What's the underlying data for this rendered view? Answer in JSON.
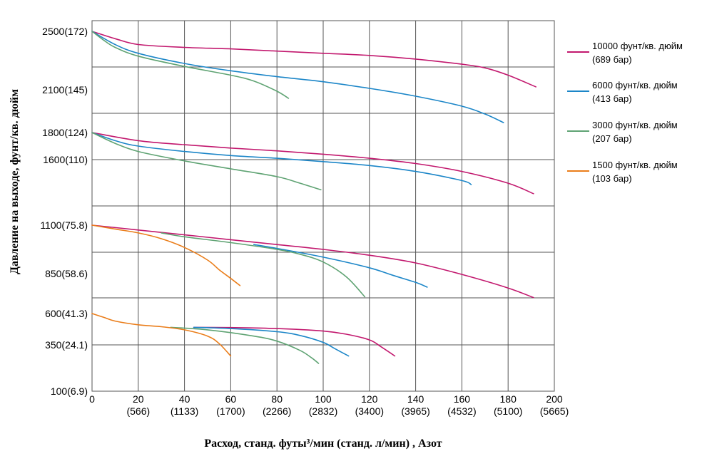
{
  "chart_data": {
    "type": "line",
    "xlabel": "Расход, станд. футы³/мин (станд. л/мин) , Азот",
    "ylabel": "Давление на выходе, фунт/кв. дюйм",
    "xlim": [
      0,
      200
    ],
    "x_ticks": [
      {
        "value": 0,
        "label": "0",
        "sub": ""
      },
      {
        "value": 20,
        "label": "20",
        "sub": "(566)"
      },
      {
        "value": 40,
        "label": "40",
        "sub": "(1133)"
      },
      {
        "value": 60,
        "label": "60",
        "sub": "(1700)"
      },
      {
        "value": 80,
        "label": "80",
        "sub": "(2266)"
      },
      {
        "value": 100,
        "label": "100",
        "sub": "(2832)"
      },
      {
        "value": 120,
        "label": "120",
        "sub": "(3400)"
      },
      {
        "value": 140,
        "label": "140",
        "sub": "(3965)"
      },
      {
        "value": 160,
        "label": "160",
        "sub": "(4532)"
      },
      {
        "value": 180,
        "label": "180",
        "sub": "(5100)"
      },
      {
        "value": 200,
        "label": "200",
        "sub": "(5665)"
      }
    ],
    "y_ticks": [
      "2500(172)",
      "2100(145)",
      "1800(124)",
      "1600(110)",
      "1100(75.8)",
      "850(58.6)",
      "600(41.3)",
      "350(24.1)",
      "100(6.9)"
    ],
    "legend": [
      {
        "key": "s10000",
        "line1": "10000 фунт/кв. дюйм",
        "line2": "(689 бар)",
        "color": "#c2186e"
      },
      {
        "key": "s6000",
        "line1": "6000 фунт/кв. дюйм",
        "line2": "(413 бар)",
        "color": "#1c86c8"
      },
      {
        "key": "s3000",
        "line1": "3000 фунт/кв. дюйм",
        "line2": "(207 бар)",
        "color": "#5fa373"
      },
      {
        "key": "s1500",
        "line1": "1500 фунт/кв. дюйм",
        "line2": "(103 бар)",
        "color": "#ea7d1a"
      }
    ],
    "series": [
      {
        "series": "s10000",
        "setting": "2500(172)",
        "x": [
          0,
          10,
          20,
          40,
          60,
          80,
          100,
          120,
          140,
          160,
          170,
          180,
          192
        ],
        "y": [
          2500,
          2450,
          2410,
          2390,
          2380,
          2365,
          2350,
          2335,
          2310,
          2275,
          2250,
          2200,
          2120
        ]
      },
      {
        "series": "s6000",
        "setting": "2500(172)",
        "x": [
          0,
          10,
          20,
          40,
          60,
          80,
          100,
          120,
          140,
          160,
          170,
          178
        ],
        "y": [
          2500,
          2410,
          2350,
          2280,
          2230,
          2190,
          2155,
          2110,
          2055,
          1985,
          1930,
          1870
        ]
      },
      {
        "series": "s3000",
        "setting": "2500(172)",
        "x": [
          0,
          5,
          10,
          20,
          40,
          60,
          70,
          80,
          85
        ],
        "y": [
          2500,
          2440,
          2390,
          2330,
          2260,
          2200,
          2160,
          2090,
          2040
        ]
      },
      {
        "series": "s10000",
        "setting": "1800(124)",
        "x": [
          0,
          20,
          40,
          60,
          80,
          100,
          120,
          140,
          160,
          180,
          191
        ],
        "y": [
          1800,
          1740,
          1710,
          1685,
          1665,
          1640,
          1610,
          1570,
          1510,
          1420,
          1340
        ]
      },
      {
        "series": "s6000",
        "setting": "1800(124)",
        "x": [
          0,
          10,
          20,
          40,
          60,
          80,
          100,
          120,
          140,
          160,
          164
        ],
        "y": [
          1800,
          1740,
          1700,
          1660,
          1630,
          1610,
          1585,
          1555,
          1510,
          1440,
          1410
        ]
      },
      {
        "series": "s3000",
        "setting": "1800(124)",
        "x": [
          0,
          10,
          20,
          40,
          60,
          80,
          90,
          99
        ],
        "y": [
          1800,
          1720,
          1660,
          1590,
          1530,
          1470,
          1420,
          1370
        ]
      },
      {
        "series": "s10000",
        "setting": "1100(75.8)",
        "x": [
          0,
          20,
          40,
          60,
          80,
          100,
          120,
          140,
          160,
          180,
          191
        ],
        "y": [
          1100,
          1075,
          1050,
          1025,
          1000,
          975,
          945,
          905,
          845,
          760,
          700
        ]
      },
      {
        "series": "s6000",
        "setting": "1100(75.8)",
        "x": [
          70,
          80,
          100,
          120,
          130,
          140,
          145
        ],
        "y": [
          1000,
          980,
          935,
          880,
          840,
          795,
          765
        ]
      },
      {
        "series": "s3000",
        "setting": "1100(75.8)",
        "x": [
          30,
          40,
          60,
          80,
          90,
          100,
          110,
          118
        ],
        "y": [
          1060,
          1040,
          1010,
          975,
          950,
          910,
          830,
          705
        ]
      },
      {
        "series": "s1500",
        "setting": "1100(75.8)",
        "x": [
          0,
          10,
          20,
          30,
          40,
          50,
          55,
          60,
          64
        ],
        "y": [
          1100,
          1080,
          1060,
          1030,
          985,
          920,
          870,
          820,
          775
        ]
      },
      {
        "series": "s10000",
        "setting": "600(41.3)",
        "x": [
          44,
          60,
          80,
          100,
          110,
          120,
          125,
          131
        ],
        "y": [
          490,
          488,
          480,
          460,
          435,
          390,
          340,
          290
        ]
      },
      {
        "series": "s6000",
        "setting": "600(41.3)",
        "x": [
          44,
          60,
          80,
          90,
          100,
          105,
          111
        ],
        "y": [
          490,
          480,
          455,
          425,
          370,
          330,
          290
        ]
      },
      {
        "series": "s3000",
        "setting": "600(41.3)",
        "x": [
          34,
          50,
          70,
          80,
          90,
          95,
          98
        ],
        "y": [
          490,
          470,
          420,
          380,
          320,
          280,
          250
        ]
      },
      {
        "series": "s1500",
        "setting": "600(41.3)",
        "x": [
          0,
          5,
          10,
          20,
          30,
          40,
          50,
          55,
          60
        ],
        "y": [
          600,
          570,
          540,
          510,
          495,
          470,
          420,
          360,
          290
        ]
      }
    ]
  }
}
